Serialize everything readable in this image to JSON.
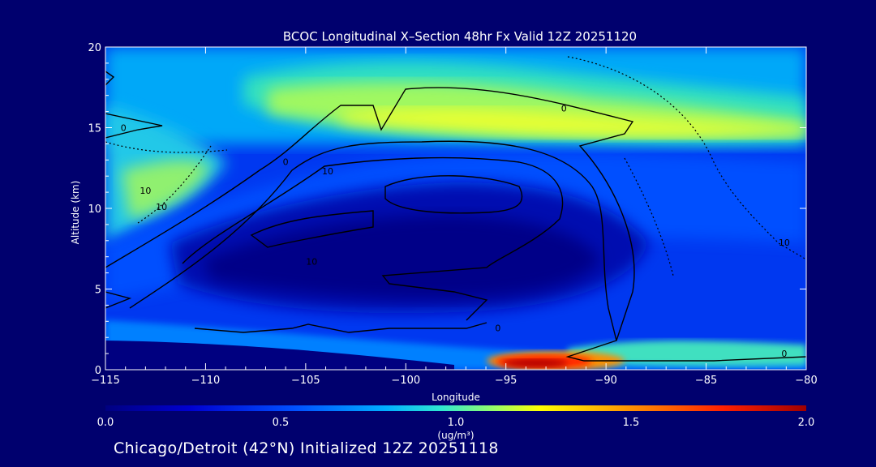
{
  "chart_data": {
    "type": "heatmap",
    "title": "BCOC Longitudinal X–Section 48hr  Fx Valid 12Z 20251120",
    "xlabel": "Longitude",
    "ylabel": "Altitude (km)",
    "xlim": [
      -115,
      -80
    ],
    "ylim": [
      0,
      20
    ],
    "x_ticks": [
      -115,
      -110,
      -105,
      -100,
      -95,
      -90,
      -85,
      -80
    ],
    "x_tick_labels": [
      "−115",
      "−110",
      "−105",
      "−100",
      "−95",
      "−90",
      "−85",
      "−80"
    ],
    "y_ticks": [
      0,
      5,
      10,
      15,
      20
    ],
    "y_tick_labels": [
      "0",
      "5",
      "10",
      "15",
      "20"
    ],
    "colorbar": {
      "label": "(ug/m³)",
      "range": [
        0.0,
        2.0
      ],
      "ticks": [
        0.0,
        0.5,
        1.0,
        1.5,
        2.0
      ],
      "tick_labels": [
        "0.0",
        "0.5",
        "1.0",
        "1.5",
        "2.0"
      ],
      "colors": [
        "#000080",
        "#0000cc",
        "#0040ff",
        "#00a0ff",
        "#20e0d0",
        "#a0ff60",
        "#ffff00",
        "#ff9000",
        "#ff2000",
        "#a00000"
      ]
    },
    "contour_labels": [
      {
        "lon": -114.1,
        "alt": 15.0,
        "text": "0"
      },
      {
        "lon": -106.0,
        "alt": 12.9,
        "text": "0"
      },
      {
        "lon": -92.1,
        "alt": 16.2,
        "text": "0"
      },
      {
        "lon": -95.4,
        "alt": 2.6,
        "text": "0"
      },
      {
        "lon": -81.1,
        "alt": 1.0,
        "text": "0"
      },
      {
        "lon": -113.0,
        "alt": 11.1,
        "text": "10"
      },
      {
        "lon": -112.2,
        "alt": 10.1,
        "text": "10"
      },
      {
        "lon": -103.9,
        "alt": 12.3,
        "text": "10"
      },
      {
        "lon": -104.7,
        "alt": 6.7,
        "text": "10"
      },
      {
        "lon": -81.1,
        "alt": 7.9,
        "text": "10"
      }
    ],
    "grid": false,
    "legend": "bottom"
  },
  "footer": {
    "caption": "Chicago/Detroit (42°N) Initialized 12Z 20251118"
  }
}
